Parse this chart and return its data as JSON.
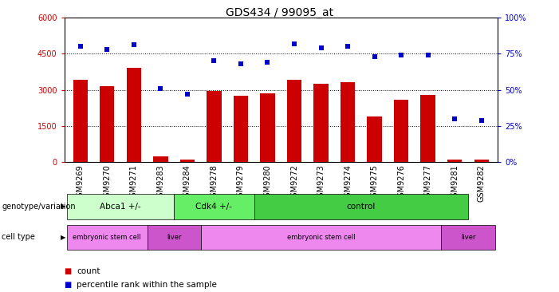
{
  "title": "GDS434 / 99095_at",
  "samples": [
    "GSM9269",
    "GSM9270",
    "GSM9271",
    "GSM9283",
    "GSM9284",
    "GSM9278",
    "GSM9279",
    "GSM9280",
    "GSM9272",
    "GSM9273",
    "GSM9274",
    "GSM9275",
    "GSM9276",
    "GSM9277",
    "GSM9281",
    "GSM9282"
  ],
  "counts": [
    3400,
    3150,
    3900,
    220,
    110,
    2950,
    2750,
    2850,
    3400,
    3250,
    3300,
    1900,
    2600,
    2800,
    100,
    110
  ],
  "percentiles": [
    80,
    78,
    81,
    51,
    47,
    70,
    68,
    69,
    82,
    79,
    80,
    73,
    74,
    74,
    30,
    29
  ],
  "ylim_left": [
    0,
    6000
  ],
  "ylim_right": [
    0,
    100
  ],
  "yticks_left": [
    0,
    1500,
    3000,
    4500,
    6000
  ],
  "yticks_right": [
    0,
    25,
    50,
    75,
    100
  ],
  "bar_color": "#cc0000",
  "dot_color": "#0000cc",
  "grid_values": [
    1500,
    3000,
    4500
  ],
  "genotype_groups": [
    {
      "label": "Abca1 +/-",
      "start": 0,
      "end": 4,
      "color": "#ccffcc"
    },
    {
      "label": "Cdk4 +/-",
      "start": 4,
      "end": 7,
      "color": "#66ee66"
    },
    {
      "label": "control",
      "start": 7,
      "end": 15,
      "color": "#44cc44"
    }
  ],
  "celltype_groups": [
    {
      "label": "embryonic stem cell",
      "start": 0,
      "end": 3,
      "color": "#ee88ee"
    },
    {
      "label": "liver",
      "start": 3,
      "end": 5,
      "color": "#cc55cc"
    },
    {
      "label": "embryonic stem cell",
      "start": 5,
      "end": 14,
      "color": "#ee88ee"
    },
    {
      "label": "liver",
      "start": 14,
      "end": 16,
      "color": "#cc55cc"
    }
  ],
  "legend_count_color": "#cc0000",
  "legend_dot_color": "#0000cc",
  "bg_color": "#ffffff",
  "plot_bg_color": "#ffffff",
  "title_fontsize": 10,
  "tick_fontsize": 7,
  "label_fontsize": 8
}
